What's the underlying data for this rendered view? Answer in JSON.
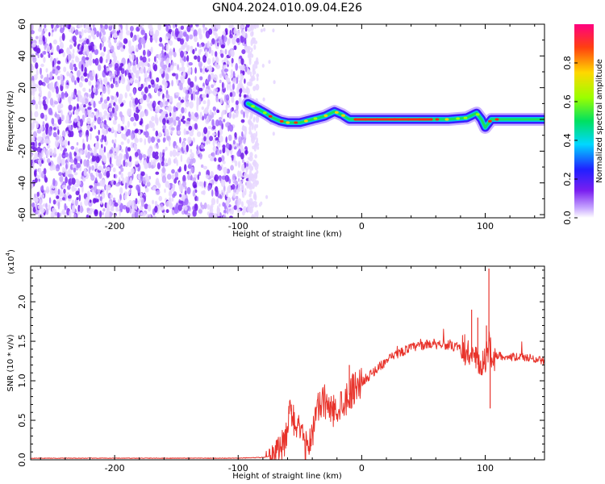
{
  "title": "GN04.2024.010.09.04.E26",
  "chart_data": [
    {
      "type": "heatmap",
      "xlabel": "Height of straight line (km)",
      "ylabel": "Frequency (Hz)",
      "xlim": [
        -268,
        148
      ],
      "ylim": [
        -62,
        60
      ],
      "xticks": [
        -200,
        -100,
        0,
        100
      ],
      "yticks": [
        -60,
        -40,
        -20,
        0,
        20,
        40,
        60
      ],
      "colorbar": {
        "label": "Normalized spectral amplitude",
        "range": [
          0,
          1
        ],
        "ticks": [
          0.0,
          0.2,
          0.4,
          0.6,
          0.8
        ],
        "colormap": [
          "#ffffff",
          "#c8a8ff",
          "#7a1ff0",
          "#2020ff",
          "#00d8ff",
          "#00e060",
          "#9aff00",
          "#ffd800",
          "#ff4010",
          "#ff0080"
        ]
      },
      "noise_region": {
        "x_range": [
          -268,
          -92
        ],
        "peak_amplitude": 0.1
      },
      "ridge": [
        {
          "x": -92,
          "y": 10
        },
        {
          "x": -85,
          "y": 7
        },
        {
          "x": -78,
          "y": 4
        },
        {
          "x": -72,
          "y": 1
        },
        {
          "x": -66,
          "y": -1
        },
        {
          "x": -60,
          "y": -2
        },
        {
          "x": -50,
          "y": -2
        },
        {
          "x": -40,
          "y": 0
        },
        {
          "x": -30,
          "y": 2
        },
        {
          "x": -22,
          "y": 5
        },
        {
          "x": -16,
          "y": 3
        },
        {
          "x": -10,
          "y": 0
        },
        {
          "x": 0,
          "y": 0
        },
        {
          "x": 40,
          "y": 0
        },
        {
          "x": 70,
          "y": 0
        },
        {
          "x": 85,
          "y": 1
        },
        {
          "x": 93,
          "y": 4
        },
        {
          "x": 97,
          "y": 0
        },
        {
          "x": 100,
          "y": -5
        },
        {
          "x": 105,
          "y": 0
        },
        {
          "x": 148,
          "y": 0
        }
      ]
    },
    {
      "type": "line",
      "xlabel": "Height of straight line (km)",
      "ylabel": "SNR (10 * v/v)",
      "y_multiplier": "(x10",
      "y_multiplier_exp": "4",
      "y_multiplier_close": ")",
      "xlim": [
        -268,
        148
      ],
      "ylim": [
        0,
        2.45
      ],
      "xticks": [
        -200,
        -100,
        0,
        100
      ],
      "yticks": [
        0.0,
        0.5,
        1.0,
        1.5,
        2.0
      ],
      "ytick_labels": [
        "0.0",
        "0.5",
        "1.0",
        "1.5",
        "2.0"
      ],
      "color": "#e8332b",
      "x": [
        -268,
        -200,
        -150,
        -100,
        -80,
        -70,
        -62,
        -58,
        -54,
        -50,
        -45,
        -40,
        -35,
        -30,
        -25,
        -20,
        -15,
        -10,
        -5,
        0,
        10,
        20,
        30,
        40,
        50,
        60,
        70,
        80,
        85,
        90,
        95,
        100,
        103,
        106,
        110,
        120,
        130,
        140,
        148
      ],
      "values": [
        0.02,
        0.02,
        0.02,
        0.02,
        0.03,
        0.06,
        0.2,
        0.6,
        0.5,
        0.3,
        0.15,
        0.35,
        0.65,
        0.75,
        0.6,
        0.65,
        0.75,
        0.82,
        0.95,
        0.98,
        1.12,
        1.25,
        1.35,
        1.42,
        1.45,
        1.48,
        1.45,
        1.4,
        1.38,
        1.3,
        1.18,
        1.22,
        1.5,
        1.3,
        1.32,
        1.3,
        1.3,
        1.28,
        1.25
      ],
      "spikes": [
        {
          "x": 89,
          "y": 1.9
        },
        {
          "x": 94,
          "y": 1.8
        },
        {
          "x": 101,
          "y": 1.7
        },
        {
          "x": 103,
          "y": 2.42
        },
        {
          "x": 104,
          "y": 0.65
        },
        {
          "x": -57,
          "y": 0.65
        },
        {
          "x": -10,
          "y": 1.2
        }
      ]
    }
  ]
}
